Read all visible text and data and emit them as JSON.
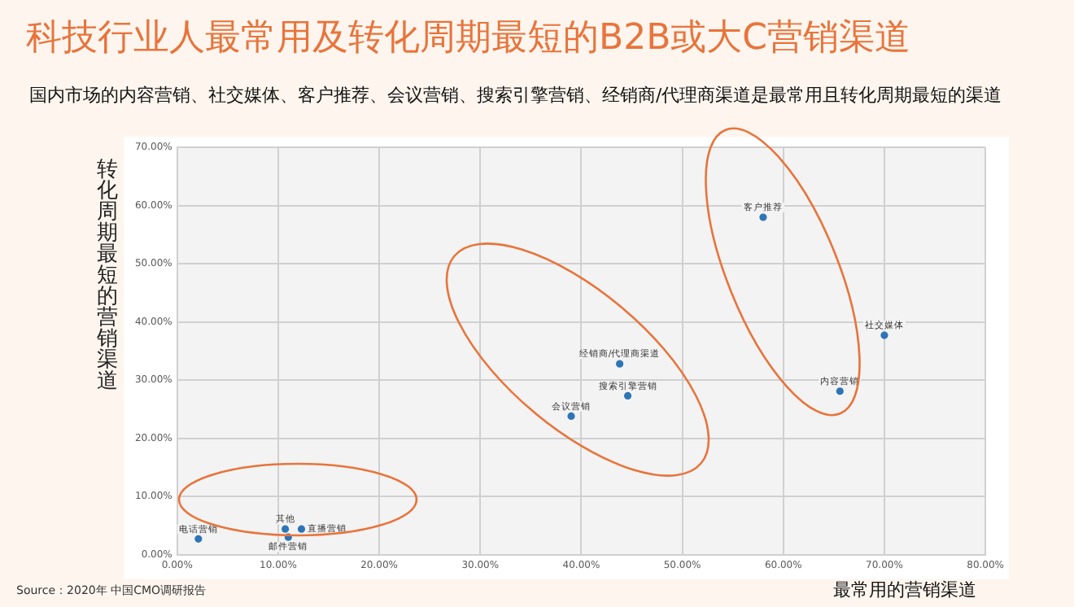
{
  "chart_data": {
    "type": "scatter",
    "title": "科技行业人最常用及转化周期最短的B2B或大C营销渠道",
    "subtitle": "国内市场的内容营销、社交媒体、客户推荐、会议营销、搜索引擎营销、经销商/代理商渠道是最常用且转化周期最短的渠道",
    "xlabel": "最常用的营销渠道",
    "ylabel": "转化周期最短的营销渠道",
    "annotations": [
      "Source：2020年 中国CMO调研报告"
    ],
    "series": [
      {
        "name": "客户推荐",
        "color": "#2e75b6",
        "x": [
          58.0
        ],
        "values": [
          58.0
        ]
      },
      {
        "name": "社交媒体",
        "color": "#2e75b6",
        "x": [
          70.0
        ],
        "values": [
          37.7
        ]
      },
      {
        "name": "内容营销",
        "color": "#2e75b6",
        "x": [
          65.6
        ],
        "values": [
          28.1
        ]
      },
      {
        "name": "经销商/代理商渠道",
        "color": "#2e75b6",
        "x": [
          43.8
        ],
        "values": [
          32.8
        ]
      },
      {
        "name": "搜索引擎营销",
        "color": "#2e75b6",
        "x": [
          44.6
        ],
        "values": [
          27.3
        ]
      },
      {
        "name": "会议营销",
        "color": "#2e75b6",
        "x": [
          39.0
        ],
        "values": [
          23.8
        ]
      },
      {
        "name": "电话营销",
        "color": "#2e75b6",
        "x": [
          2.1
        ],
        "values": [
          2.7
        ]
      },
      {
        "name": "其他",
        "color": "#2e75b6",
        "x": [
          10.7
        ],
        "values": [
          4.4
        ]
      },
      {
        "name": "直播营销",
        "color": "#2e75b6",
        "x": [
          12.3
        ],
        "values": [
          4.4
        ]
      },
      {
        "name": "邮件营销",
        "color": "#2e75b6",
        "x": [
          11.0
        ],
        "values": [
          3.0
        ]
      }
    ],
    "xlim": [
      0,
      80
    ],
    "xticks": [
      {
        "value": 0,
        "label": "0.00%"
      },
      {
        "value": 10,
        "label": "10.00%"
      },
      {
        "value": 20,
        "label": "20.00%"
      },
      {
        "value": 30,
        "label": "30.00%"
      },
      {
        "value": 40,
        "label": "40.00%"
      },
      {
        "value": 50,
        "label": "50.00%"
      },
      {
        "value": 60,
        "label": "60.00%"
      },
      {
        "value": 70,
        "label": "70.00%"
      },
      {
        "value": 80,
        "label": "80.00%"
      }
    ],
    "ylim": [
      0,
      70
    ],
    "yticks": [
      {
        "value": 0,
        "label": "0.00%"
      },
      {
        "value": 10,
        "label": "10.00%"
      },
      {
        "value": 20,
        "label": "20.00%"
      },
      {
        "value": 30,
        "label": "30.00%"
      },
      {
        "value": 40,
        "label": "40.00%"
      },
      {
        "value": 50,
        "label": "50.00%"
      },
      {
        "value": 60,
        "label": "60.00%"
      },
      {
        "value": 70,
        "label": "70.00%"
      }
    ],
    "grid": true,
    "legend": false,
    "marker": "circle"
  }
}
